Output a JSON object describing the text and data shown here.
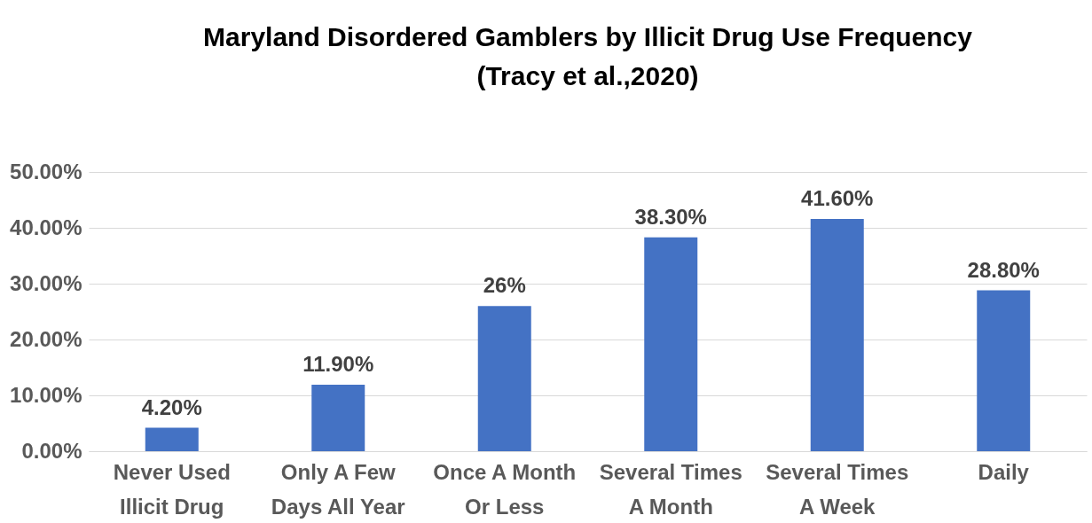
{
  "chart_data": {
    "type": "bar",
    "title": "Maryland Disordered Gamblers by Illicit Drug Use Frequency (Tracy et al.,2020)",
    "categories": [
      "Never Used Illicit Drug",
      "Only A Few Days All Year",
      "Once A Month Or Less",
      "Several Times A Month",
      "Several Times A Week",
      "Daily"
    ],
    "values": [
      4.2,
      11.9,
      26,
      38.3,
      41.6,
      28.8
    ],
    "value_labels": [
      "4.20%",
      "11.90%",
      "26%",
      "38.30%",
      "41.60%",
      "28.80%"
    ],
    "color": "#4472c4",
    "ylim": [
      0,
      50
    ],
    "yticks": [
      {
        "value": 0,
        "label": "0.00%"
      },
      {
        "value": 10,
        "label": "10.00%"
      },
      {
        "value": 20,
        "label": "20.00%"
      },
      {
        "value": 30,
        "label": "30.00%"
      },
      {
        "value": 40,
        "label": "40.00%"
      },
      {
        "value": 50,
        "label": "50.00%"
      }
    ],
    "grid": "y"
  }
}
